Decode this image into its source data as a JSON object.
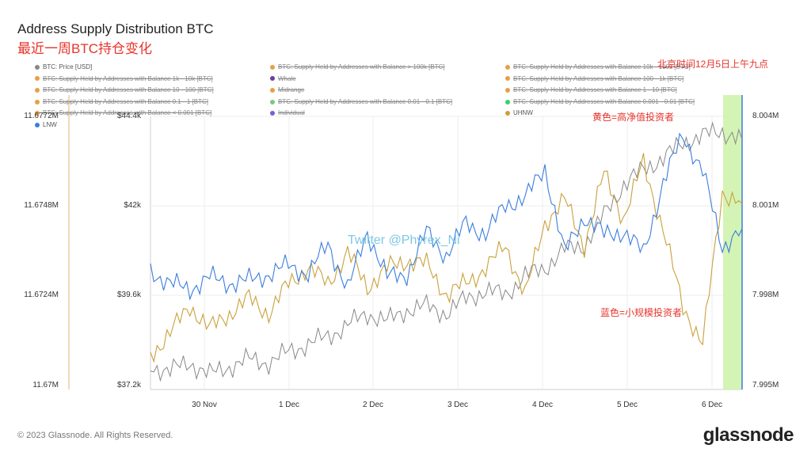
{
  "title": "Address Supply Distribution BTC",
  "subtitle": "最近一周BTC持仓变化",
  "legend": [
    {
      "label": "BTC: Price [USD]",
      "color": "#888888",
      "active": true
    },
    {
      "label": "BTC: Supply Held by Addresses with Balance > 100k [BTC]",
      "color": "#e8a042",
      "active": false
    },
    {
      "label": "BTC: Supply Held by Addresses with Balance 10k - 100k [BTC]",
      "color": "#e8a042",
      "active": false
    },
    {
      "label": "BTC: Supply Held by Addresses with Balance 1k - 10k [BTC]",
      "color": "#e8a042",
      "active": false
    },
    {
      "label": "Whale",
      "color": "#6b3fa0",
      "active": false
    },
    {
      "label": "BTC: Supply Held by Addresses with Balance 100 - 1k [BTC]",
      "color": "#e8a042",
      "active": false
    },
    {
      "label": "BTC: Supply Held by Addresses with Balance 10 - 100 [BTC]",
      "color": "#e8a042",
      "active": false
    },
    {
      "label": "Midrange",
      "color": "#e8a042",
      "active": false
    },
    {
      "label": "BTC: Supply Held by Addresses with Balance 1 - 10 [BTC]",
      "color": "#e8a042",
      "active": false
    },
    {
      "label": "BTC: Supply Held by Addresses with Balance 0.1 - 1 [BTC]",
      "color": "#e8a042",
      "active": false
    },
    {
      "label": "BTC: Supply Held by Addresses with Balance 0.01 - 0.1 [BTC]",
      "color": "#7dc87d",
      "active": false
    },
    {
      "label": "BTC: Supply Held by Addresses with Balance 0.001 - 0.01 [BTC]",
      "color": "#3ad06a",
      "active": false
    },
    {
      "label": "BTC: Supply Held by Addresses with Balance < 0.001 [BTC]",
      "color": "#e8a042",
      "active": false
    },
    {
      "label": "Individual",
      "color": "#7b5cd6",
      "active": false
    },
    {
      "label": "UHNW",
      "color": "#c9a13b",
      "active": true
    },
    {
      "label": "LNW",
      "color": "#3b7ddd",
      "active": true
    }
  ],
  "annotations": {
    "time_note": "北京时间12月5日上午九点",
    "yellow_note": "黄色=高净值投资者",
    "blue_note": "蓝色=小规模投资者",
    "watermark": "Twitter @Phyrex_Ni"
  },
  "footer": "© 2023 Glassnode. All Rights Reserved.",
  "logo": "glassnode",
  "colors": {
    "price": "#888888",
    "uhnw": "#c9a13b",
    "lnw": "#3b7ddd",
    "highlight": "#ccf2a8",
    "annotation": "#e8332a"
  },
  "chart_data": {
    "type": "line",
    "x_ticks": [
      "30 Nov",
      "1 Dec",
      "2 Dec",
      "3 Dec",
      "4 Dec",
      "5 Dec",
      "6 Dec"
    ],
    "x_range": [
      "29 Nov 07:00",
      "6 Dec 09:00"
    ],
    "y_axes": {
      "left_outer": {
        "ticks": [
          "11.6772M",
          "11.6748M",
          "11.6724M",
          "11.67M"
        ],
        "range": [
          11.67,
          11.6772
        ]
      },
      "left_inner": {
        "ticks": [
          "$44.4k",
          "$42k",
          "$39.6k",
          "$37.2k"
        ],
        "range": [
          37.2,
          44.4
        ]
      },
      "right": {
        "ticks": [
          "8.004M",
          "8.001M",
          "7.998M",
          "7.995M"
        ],
        "range": [
          7.995,
          8.004
        ]
      }
    },
    "highlight_region": {
      "from": "6 Dec 02:00",
      "to": "6 Dec 09:00"
    },
    "series": [
      {
        "name": "BTC: Price [USD]",
        "axis": "left_inner",
        "values_k": [
          37.8,
          37.7,
          37.9,
          37.6,
          37.8,
          38.0,
          37.9,
          38.2,
          38.4,
          38.6,
          38.9,
          39.2,
          39.0,
          39.3,
          39.4,
          39.2,
          39.6,
          39.8,
          39.7,
          40.2,
          40.4,
          40.9,
          41.0,
          41.8,
          42.6,
          43.0,
          43.3,
          43.7,
          43.9,
          44.0,
          43.8
        ]
      },
      {
        "name": "UHNW",
        "axis": "left_outer",
        "values_m": [
          11.6709,
          11.6715,
          11.6722,
          11.6716,
          11.672,
          11.6724,
          11.672,
          11.6728,
          11.6732,
          11.6728,
          11.6736,
          11.6727,
          11.6732,
          11.6734,
          11.6733,
          11.6725,
          11.6728,
          11.6732,
          11.6738,
          11.6725,
          11.6744,
          11.675,
          11.6738,
          11.6757,
          11.6745,
          11.676,
          11.6742,
          11.6722,
          11.6712,
          11.6752,
          11.6749
        ]
      },
      {
        "name": "LNW",
        "axis": "right",
        "values_m": [
          7.9989,
          7.9985,
          7.9983,
          7.9987,
          7.9985,
          7.9986,
          7.9988,
          7.9991,
          7.9988,
          7.9998,
          7.9983,
          8.0002,
          7.9987,
          7.9988,
          8.0002,
          7.9994,
          8.0005,
          8.0001,
          8.0011,
          8.0013,
          8.0023,
          7.9995,
          8.0007,
          8.0001,
          8.0002,
          7.9995,
          8.0018,
          8.0034,
          8.0022,
          7.9997,
          8.0003
        ]
      }
    ]
  }
}
